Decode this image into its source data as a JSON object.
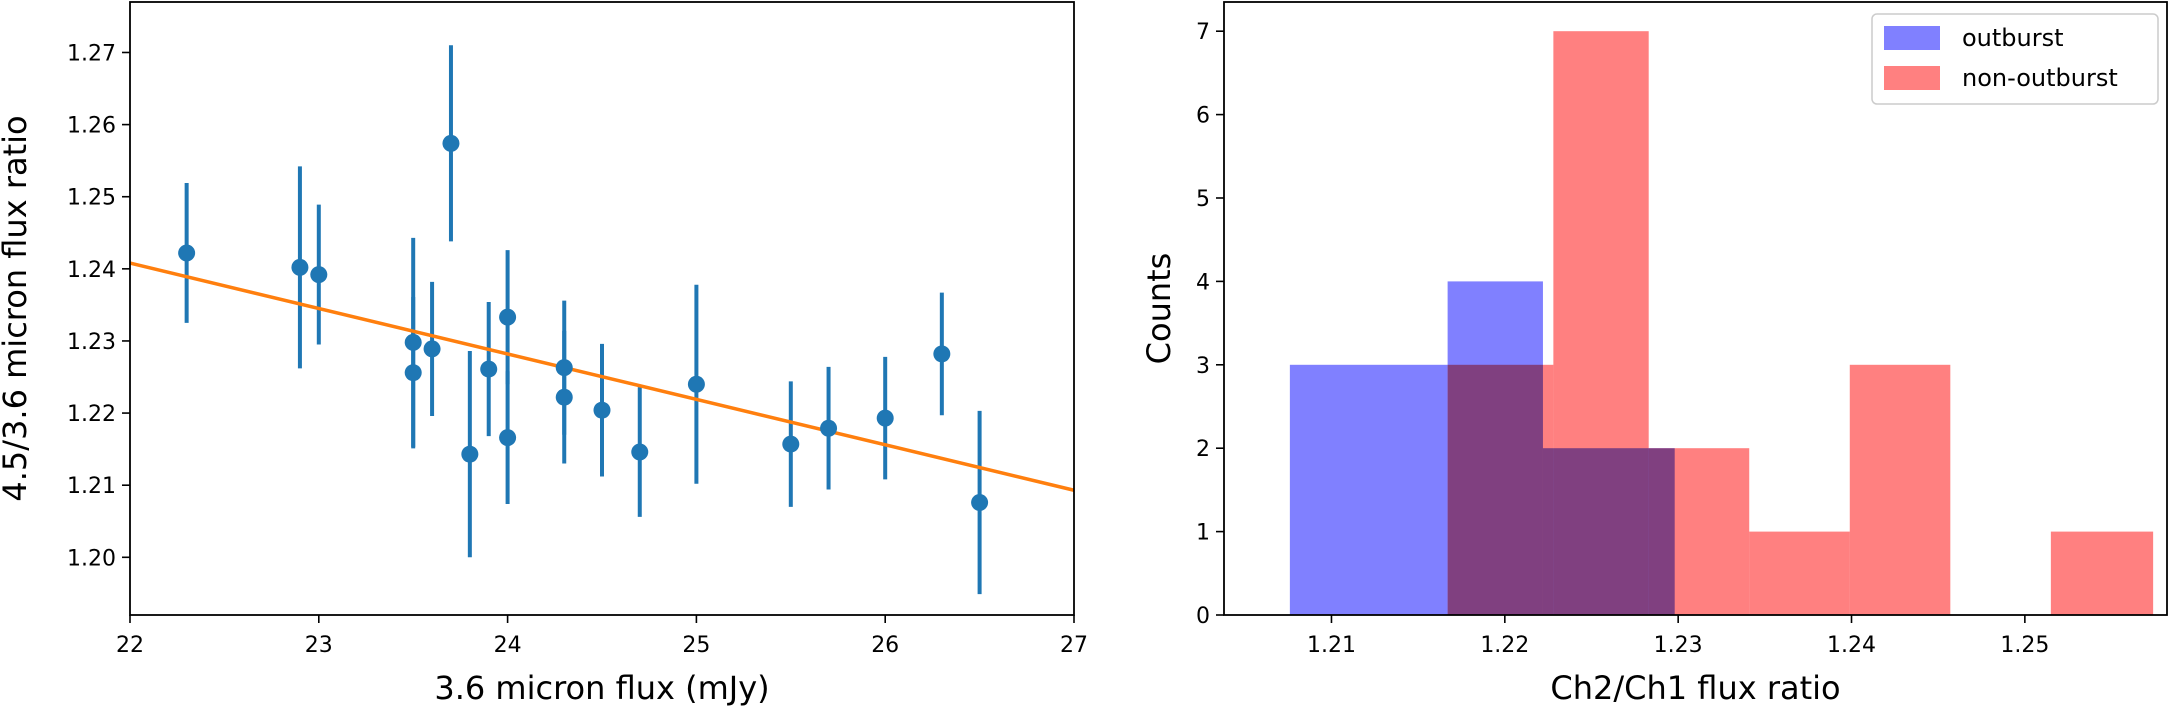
{
  "chart_data": [
    {
      "type": "scatter",
      "title": "",
      "xlabel": "3.6 micron flux (mJy)",
      "ylabel": "4.5/3.6 micron flux ratio",
      "xlim": [
        22,
        27
      ],
      "ylim": [
        1.192,
        1.277
      ],
      "xticks": [
        "22",
        "23",
        "24",
        "25",
        "26",
        "27"
      ],
      "yticks": [
        "1.20",
        "1.21",
        "1.22",
        "1.23",
        "1.24",
        "1.25",
        "1.26",
        "1.27"
      ],
      "grid": false,
      "marker_color": "#1f77b4",
      "fit_color": "#ff7f0e",
      "points": [
        {
          "x": 22.3,
          "y": 1.2422,
          "err": 0.0097
        },
        {
          "x": 22.9,
          "y": 1.2402,
          "err": 0.014
        },
        {
          "x": 23.0,
          "y": 1.2392,
          "err": 0.0097
        },
        {
          "x": 23.5,
          "y": 1.2298,
          "err": 0.0145
        },
        {
          "x": 23.5,
          "y": 1.2256,
          "err": 0.0105
        },
        {
          "x": 23.6,
          "y": 1.2289,
          "err": 0.0093
        },
        {
          "x": 23.7,
          "y": 1.2574,
          "err": 0.0136
        },
        {
          "x": 23.8,
          "y": 1.2143,
          "err": 0.0143
        },
        {
          "x": 23.9,
          "y": 1.2261,
          "err": 0.0093
        },
        {
          "x": 24.0,
          "y": 1.2333,
          "err": 0.0093
        },
        {
          "x": 24.0,
          "y": 1.2166,
          "err": 0.0092
        },
        {
          "x": 24.3,
          "y": 1.2263,
          "err": 0.0093
        },
        {
          "x": 24.3,
          "y": 1.2222,
          "err": 0.0092
        },
        {
          "x": 24.5,
          "y": 1.2204,
          "err": 0.0092
        },
        {
          "x": 24.7,
          "y": 1.2146,
          "err": 0.009
        },
        {
          "x": 25.0,
          "y": 1.224,
          "err": 0.0138
        },
        {
          "x": 25.5,
          "y": 1.2157,
          "err": 0.0087
        },
        {
          "x": 25.7,
          "y": 1.2179,
          "err": 0.0085
        },
        {
          "x": 26.0,
          "y": 1.2193,
          "err": 0.0085
        },
        {
          "x": 26.3,
          "y": 1.2282,
          "err": 0.0085
        },
        {
          "x": 26.5,
          "y": 1.2076,
          "err": 0.0127
        }
      ],
      "fit_line": {
        "x": [
          22,
          27
        ],
        "y": [
          1.2408,
          1.2093
        ]
      }
    },
    {
      "type": "bar",
      "title": "",
      "xlabel": "Ch2/Ch1 flux ratio",
      "ylabel": "Counts",
      "xlim": [
        1.2038,
        1.2582
      ],
      "ylim": [
        0,
        7.35
      ],
      "xticks": [
        "1.21",
        "1.22",
        "1.23",
        "1.24",
        "1.25"
      ],
      "yticks": [
        "0",
        "1",
        "2",
        "3",
        "4",
        "5",
        "6",
        "7"
      ],
      "grid": false,
      "legend_position": "top-right",
      "series": [
        {
          "name": "outburst",
          "color": "#8080ff",
          "bins": [
            {
              "x0": 1.2076,
              "x1": 1.2167,
              "count": 3
            },
            {
              "x0": 1.2167,
              "x1": 1.2222,
              "count": 4
            },
            {
              "x0": 1.2222,
              "x1": 1.2298,
              "count": 2
            }
          ]
        },
        {
          "name": "non-outburst",
          "color": "#ff8080",
          "bins": [
            {
              "x0": 1.2167,
              "x1": 1.2228,
              "count": 3
            },
            {
              "x0": 1.2228,
              "x1": 1.2283,
              "count": 7
            },
            {
              "x0": 1.2283,
              "x1": 1.2341,
              "count": 2
            },
            {
              "x0": 1.2341,
              "x1": 1.2399,
              "count": 1
            },
            {
              "x0": 1.2399,
              "x1": 1.2457,
              "count": 3
            },
            {
              "x0": 1.2457,
              "x1": 1.2515,
              "count": 0
            },
            {
              "x0": 1.2515,
              "x1": 1.2574,
              "count": 1
            }
          ]
        }
      ]
    }
  ]
}
